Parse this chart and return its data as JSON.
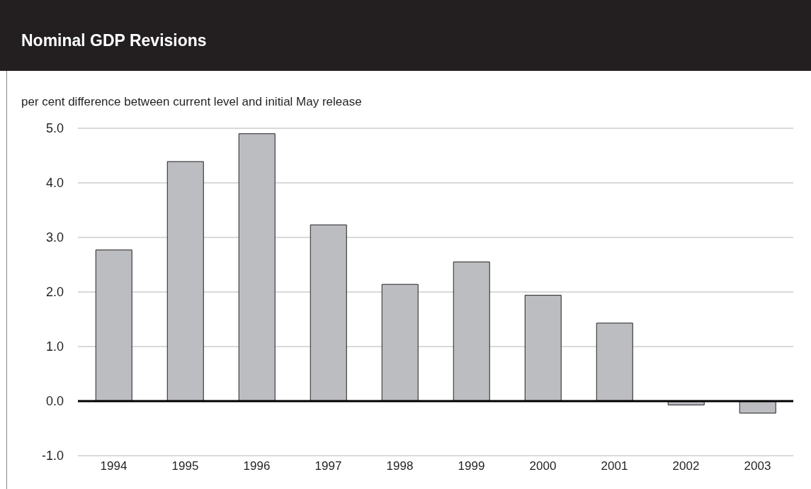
{
  "chart_data": {
    "type": "bar",
    "title": "Nominal GDP Revisions",
    "ylabel": "per cent difference between current level and initial May release",
    "categories": [
      "1994",
      "1995",
      "1996",
      "1997",
      "1998",
      "1999",
      "2000",
      "2001",
      "2002",
      "2003"
    ],
    "values": [
      2.77,
      4.39,
      4.9,
      3.23,
      2.14,
      2.55,
      1.94,
      1.43,
      -0.07,
      -0.22
    ],
    "color": "#bcbdc1",
    "ylim": [
      -1,
      5
    ],
    "yticks": [
      {
        "value": -1,
        "label": "-1.0"
      },
      {
        "value": 0,
        "label": "0.0"
      },
      {
        "value": 1,
        "label": "1.0"
      },
      {
        "value": 2,
        "label": "2.0"
      },
      {
        "value": 3,
        "label": "3.0"
      },
      {
        "value": 4,
        "label": "4.0"
      },
      {
        "value": 5,
        "label": "5.0"
      }
    ],
    "grid": "y",
    "ref_lines": [
      {
        "axis": "y",
        "value": 0,
        "color": "#000000"
      }
    ]
  }
}
